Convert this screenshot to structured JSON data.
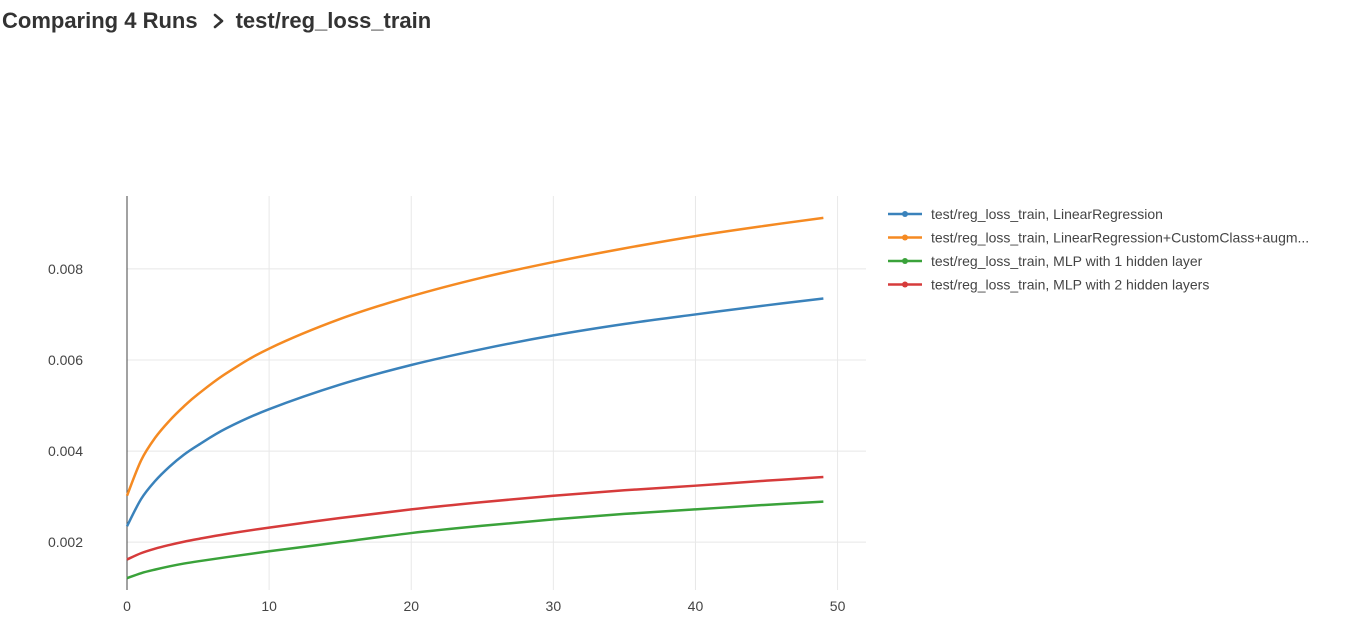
{
  "breadcrumb": {
    "parent": "Comparing 4 Runs",
    "current": "test/reg_loss_train",
    "separator_icon": "chevron-right-icon"
  },
  "chart_data": {
    "type": "line",
    "title": "",
    "xlabel": "",
    "ylabel": "",
    "xlim": [
      0,
      52
    ],
    "ylim": [
      0.00095,
      0.0096
    ],
    "xticks": [
      0,
      10,
      20,
      30,
      40,
      50
    ],
    "yticks": [
      0.002,
      0.004,
      0.006,
      0.008
    ],
    "xtick_labels": [
      "0",
      "10",
      "20",
      "30",
      "40",
      "50"
    ],
    "ytick_labels": [
      "0.002",
      "0.004",
      "0.006",
      "0.008"
    ],
    "grid": true,
    "legend_position": "right",
    "series": [
      {
        "name": "test/reg_loss_train, LinearRegression",
        "color": "#3a82bb",
        "x": [
          0,
          1,
          2,
          3,
          4,
          5,
          7,
          10,
          15,
          20,
          25,
          30,
          35,
          40,
          45,
          49
        ],
        "values": [
          0.00235,
          0.00295,
          0.00335,
          0.00366,
          0.00392,
          0.00413,
          0.0045,
          0.00492,
          0.00546,
          0.00589,
          0.00624,
          0.00654,
          0.00679,
          0.007,
          0.0072,
          0.00735
        ]
      },
      {
        "name": "test/reg_loss_train, LinearRegression+CustomClass+augm...",
        "color": "#f58a22",
        "x": [
          0,
          1,
          2,
          3,
          4,
          5,
          7,
          10,
          15,
          20,
          25,
          30,
          35,
          40,
          45,
          49
        ],
        "values": [
          0.00302,
          0.0038,
          0.0043,
          0.00467,
          0.00498,
          0.00525,
          0.00571,
          0.00625,
          0.0069,
          0.0074,
          0.00781,
          0.00815,
          0.00845,
          0.00872,
          0.00895,
          0.00912
        ]
      },
      {
        "name": "test/reg_loss_train, MLP with 1 hidden layer",
        "color": "#3aa23a",
        "x": [
          0,
          1,
          2,
          3,
          4,
          5,
          7,
          10,
          15,
          20,
          25,
          30,
          35,
          40,
          45,
          49
        ],
        "values": [
          0.00121,
          0.00132,
          0.0014,
          0.00147,
          0.00153,
          0.00158,
          0.00167,
          0.0018,
          0.002,
          0.0022,
          0.00236,
          0.0025,
          0.00262,
          0.00272,
          0.00282,
          0.00289
        ]
      },
      {
        "name": "test/reg_loss_train, MLP with 2 hidden layers",
        "color": "#d63b3b",
        "x": [
          0,
          1,
          2,
          3,
          4,
          5,
          7,
          10,
          15,
          20,
          25,
          30,
          35,
          40,
          45,
          49
        ],
        "values": [
          0.00162,
          0.00176,
          0.00186,
          0.00194,
          0.00201,
          0.00207,
          0.00218,
          0.00232,
          0.00253,
          0.00272,
          0.00288,
          0.00302,
          0.00314,
          0.00324,
          0.00335,
          0.00343
        ]
      }
    ]
  }
}
